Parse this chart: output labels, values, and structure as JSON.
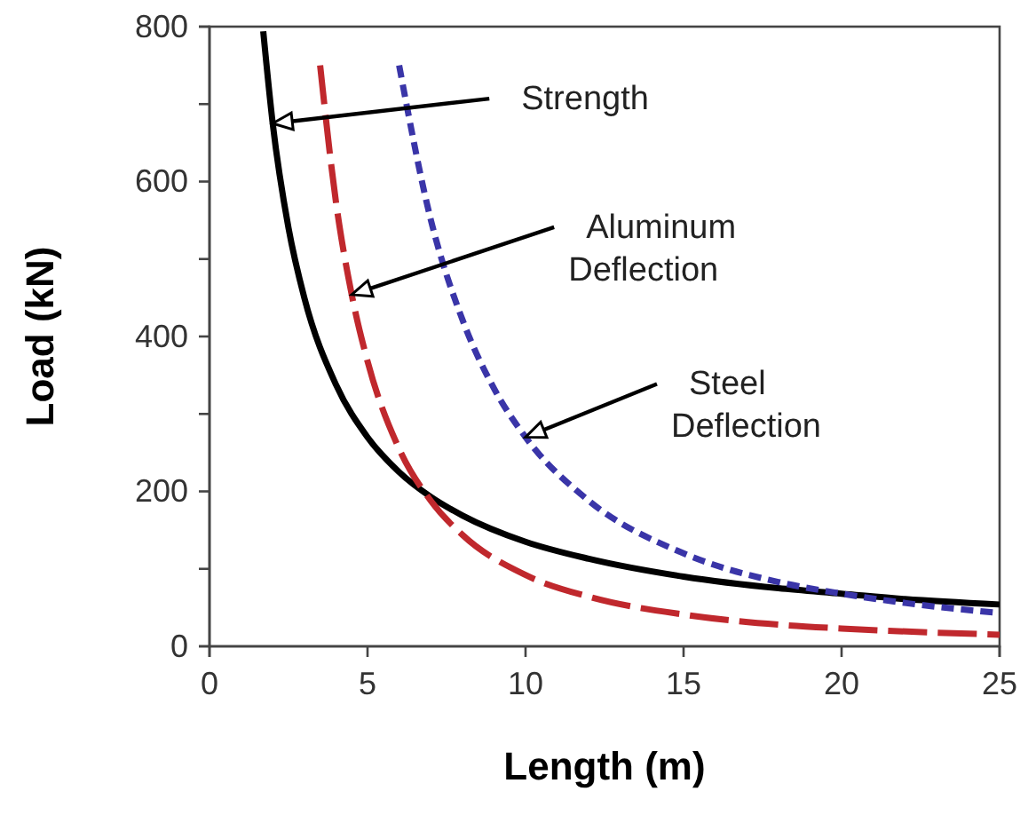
{
  "chart_data": {
    "type": "line",
    "xlabel": "Length (m)",
    "ylabel": "Load (kN)",
    "xlim": [
      0,
      25
    ],
    "xticks": [
      0,
      5,
      10,
      15,
      20,
      25
    ],
    "ylim": [
      0,
      800
    ],
    "yticks": [
      0,
      {
        "value": 100,
        "label": null
      },
      200,
      {
        "value": 300,
        "label": null
      },
      400,
      {
        "value": 500,
        "label": null
      },
      600,
      {
        "value": 700,
        "label": null
      },
      800
    ],
    "grid": false,
    "marker": "none",
    "series": [
      {
        "color": "#000000",
        "line_style": "solid",
        "x": [
          1.7,
          2,
          2.5,
          3,
          4,
          5,
          6,
          7,
          8,
          10,
          12,
          15,
          18,
          20,
          22,
          25
        ],
        "values": [
          794,
          675,
          540,
          450,
          338,
          270,
          225,
          193,
          169,
          135,
          113,
          90,
          75,
          68,
          61,
          54
        ]
      },
      {
        "color": "#c0282d",
        "line_style": "dashed",
        "x": [
          3.5,
          4,
          4.5,
          5,
          6,
          7,
          8,
          10,
          12,
          15,
          18,
          20,
          25
        ],
        "values": [
          750,
          574,
          454,
          368,
          255,
          188,
          144,
          92,
          64,
          41,
          28,
          23,
          15
        ]
      },
      {
        "color": "#3a35a8",
        "line_style": "dotted",
        "x": [
          6,
          7,
          8,
          9,
          10,
          12,
          15,
          18,
          20,
          22,
          25
        ],
        "values": [
          750,
          551,
          422,
          333,
          270,
          188,
          120,
          83,
          68,
          56,
          43
        ]
      }
    ],
    "annotations": [
      {
        "text": "Strength",
        "x": 2,
        "y": 675
      },
      {
        "text": "Aluminum\nDeflection",
        "x": 4.5,
        "y": 454
      },
      {
        "text": "Steel\nDeflection",
        "x": 10,
        "y": 270
      }
    ]
  }
}
